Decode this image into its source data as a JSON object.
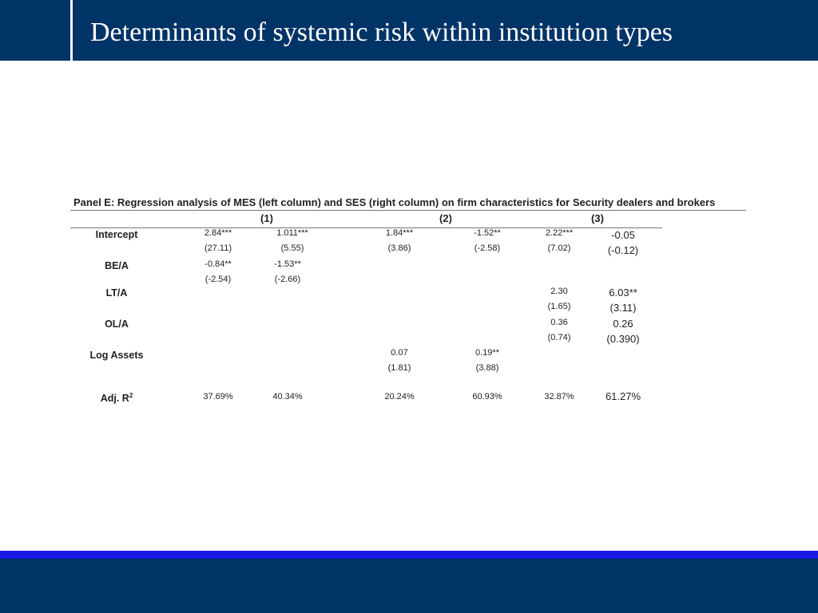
{
  "slide": {
    "title": "Determinants of systemic risk within institution types"
  },
  "table": {
    "caption": "Panel E: Regression analysis of MES (left column) and SES (right column) on firm characteristics for Security dealers and brokers",
    "column_groups": [
      "(1)",
      "(2)",
      "(3)"
    ],
    "rows": [
      {
        "label": "Intercept",
        "cells": [
          [
            "2.84***",
            "(27.11)"
          ],
          [
            "1.011***",
            "(5.55)"
          ],
          [
            "1.84***",
            "(3.86)"
          ],
          [
            "-1.52**",
            "(-2.58)"
          ],
          [
            "2.22***",
            "(7.02)"
          ],
          [
            "-0.05",
            "(-0.12)"
          ]
        ]
      },
      {
        "label": "BE/A",
        "cells": [
          [
            "-0.84**",
            "(-2.54)"
          ],
          [
            "-1.53**",
            "(-2.66)"
          ],
          [
            "",
            ""
          ],
          [
            "",
            ""
          ],
          [
            "",
            ""
          ],
          [
            "",
            ""
          ]
        ]
      },
      {
        "label": "LT/A",
        "cells": [
          [
            "",
            ""
          ],
          [
            "",
            ""
          ],
          [
            "",
            ""
          ],
          [
            "",
            ""
          ],
          [
            "2.30",
            "(1.65)"
          ],
          [
            "6.03**",
            "(3.11)"
          ]
        ]
      },
      {
        "label": "OL/A",
        "cells": [
          [
            "",
            ""
          ],
          [
            "",
            ""
          ],
          [
            "",
            ""
          ],
          [
            "",
            ""
          ],
          [
            "0.36",
            "(0.74)"
          ],
          [
            "0.26",
            "(0.390)"
          ]
        ]
      },
      {
        "label": "Log Assets",
        "cells": [
          [
            "",
            ""
          ],
          [
            "",
            ""
          ],
          [
            "0.07",
            "(1.81)"
          ],
          [
            "0.19**",
            "(3.88)"
          ],
          [
            "",
            ""
          ],
          [
            "",
            ""
          ]
        ]
      },
      {
        "label": "Adj. R",
        "label_sup": "2",
        "cells": [
          [
            "37.69%",
            ""
          ],
          [
            "40.34%",
            ""
          ],
          [
            "20.24%",
            ""
          ],
          [
            "60.93%",
            ""
          ],
          [
            "32.87%",
            ""
          ],
          [
            "61.27%",
            ""
          ]
        ]
      }
    ]
  },
  "colors": {
    "header_bg": "#003366",
    "footer_bg": "#003366",
    "footer_stripe": "#1a1ae6",
    "title_text": "#ffffff"
  }
}
